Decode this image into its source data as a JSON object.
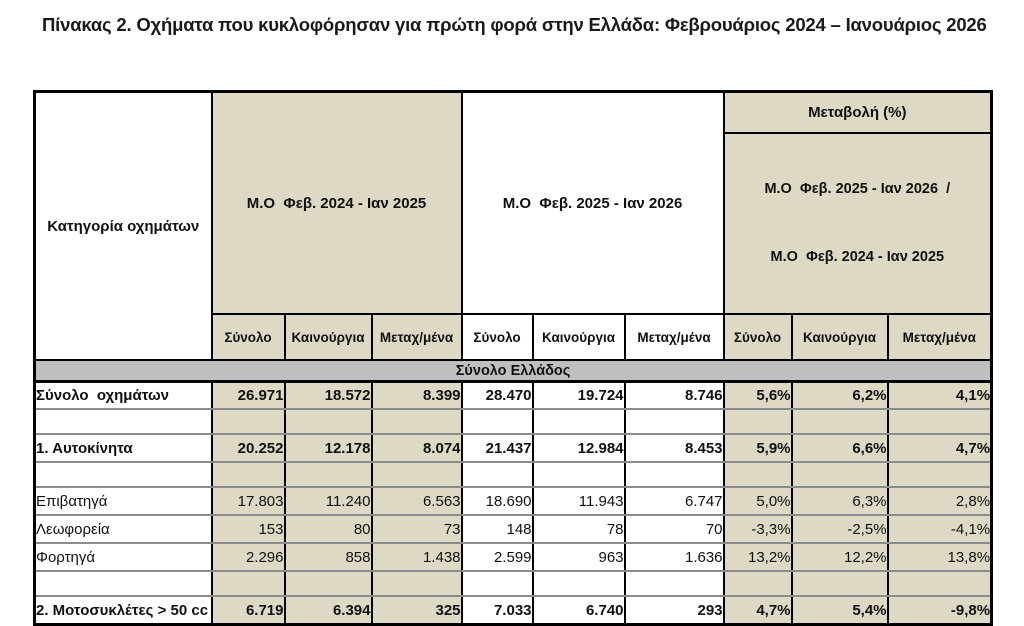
{
  "title": "Πίνακας 2. Οχήματα που κυκλοφόρησαν για πρώτη φορά στην Ελλάδα: Φεβρουάριος 2024 – Ιανουάριος 2026",
  "colors": {
    "tan_fill": "#ddd9c4",
    "band_fill": "#bfbfbf",
    "grid_black": "#000000",
    "grid_gray": "#8c8c8c"
  },
  "table": {
    "header": {
      "category": "Κατηγορία οχημάτων",
      "group1": "Μ.Ο  Φεβ. 2024 - Ιαν 2025",
      "group2": "Μ.Ο  Φεβ. 2025 - Ιαν 2026",
      "change": "Μεταβολή (%)",
      "change_sub1": "Μ.Ο  Φεβ. 2025 - Ιαν 2026  /",
      "change_sub2": "Μ.Ο  Φεβ. 2024 - Ιαν 2025",
      "subcols": [
        "Σύνολο",
        "Καινούργια",
        "Μεταχ/μένα"
      ]
    },
    "section_band": "Σύνολο Ελλάδος",
    "rows": [
      {
        "label": "Σύνολο  οχημάτων",
        "bold": true,
        "indent": 1,
        "values": [
          "26.971",
          "18.572",
          "8.399",
          "28.470",
          "19.724",
          "8.746",
          "5,6%",
          "6,2%",
          "4,1%"
        ]
      },
      {
        "empty": true
      },
      {
        "label": "1. Αυτοκίνητα",
        "bold": true,
        "indent": 0,
        "values": [
          "20.252",
          "12.178",
          "8.074",
          "21.437",
          "12.984",
          "8.453",
          "5,9%",
          "6,6%",
          "4,7%"
        ]
      },
      {
        "empty": true
      },
      {
        "label": "Επιβατηγά",
        "bold": false,
        "indent": 2,
        "values": [
          "17.803",
          "11.240",
          "6.563",
          "18.690",
          "11.943",
          "6.747",
          "5,0%",
          "6,3%",
          "2,8%"
        ]
      },
      {
        "label": "Λεωφορεία",
        "bold": false,
        "indent": 2,
        "values": [
          "153",
          "80",
          "73",
          "148",
          "78",
          "70",
          "-3,3%",
          "-2,5%",
          "-4,1%"
        ]
      },
      {
        "label": "Φορτηγά",
        "bold": false,
        "indent": 2,
        "values": [
          "2.296",
          "858",
          "1.438",
          "2.599",
          "963",
          "1.636",
          "13,2%",
          "12,2%",
          "13,8%"
        ]
      },
      {
        "empty": true
      },
      {
        "label": "2. Μοτοσυκλέτες > 50 cc",
        "bold": true,
        "indent": 0,
        "values": [
          "6.719",
          "6.394",
          "325",
          "7.033",
          "6.740",
          "293",
          "4,7%",
          "5,4%",
          "-9,8%"
        ]
      }
    ]
  }
}
